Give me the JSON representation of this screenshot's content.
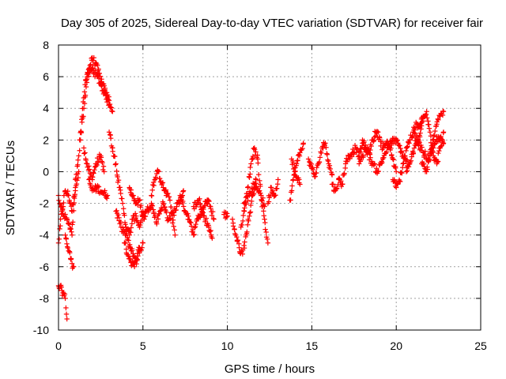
{
  "chart_data": {
    "type": "scatter",
    "title": "Day 305 of 2025, Sidereal Day-to-day VTEC variation (SDTVAR) for receiver fair",
    "xlabel": "GPS time / hours",
    "ylabel": "SDTVAR / TECUs",
    "xlim": [
      0,
      25
    ],
    "ylim": [
      -10,
      8
    ],
    "xticks": [
      0,
      5,
      10,
      15,
      20,
      25
    ],
    "yticks": [
      -10,
      -8,
      -6,
      -4,
      -2,
      0,
      2,
      4,
      6,
      8
    ],
    "xtick_labels": [
      "0",
      "5",
      "10",
      "15",
      "20",
      "25"
    ],
    "ytick_labels": [
      "-10",
      "-8",
      "-6",
      "-4",
      "-2",
      "0",
      "2",
      "4",
      "6",
      "8"
    ],
    "grid": true,
    "marker": "+",
    "color": "#ff0000",
    "series": [
      {
        "name": "SDTVAR",
        "segments": [
          {
            "x": [
              0.0,
              0.2,
              0.4,
              0.6,
              0.8,
              1.0,
              1.2
            ],
            "y": [
              -4.5,
              -2.5,
              -1.2,
              -1.5,
              -2.5,
              -1.0,
              0.0
            ]
          },
          {
            "x": [
              0.0,
              0.3,
              0.5,
              0.8,
              1.0
            ],
            "y": [
              -1.5,
              -2.8,
              -3.0,
              -4.0,
              -1.2
            ]
          },
          {
            "x": [
              0.0,
              0.2,
              0.4,
              0.5
            ],
            "y": [
              -7.2,
              -7.5,
              -8.0,
              -9.3
            ]
          },
          {
            "x": [
              0.4,
              0.6,
              0.8,
              0.9
            ],
            "y": [
              -4.0,
              -5.0,
              -5.8,
              -6.0
            ]
          },
          {
            "x": [
              1.0,
              1.2,
              1.4,
              1.6,
              1.8,
              2.0,
              2.2,
              2.4,
              2.6,
              2.8,
              3.0,
              3.2
            ],
            "y": [
              -0.5,
              1.0,
              3.5,
              5.8,
              6.5,
              7.2,
              6.8,
              6.2,
              5.5,
              5.0,
              4.5,
              3.8
            ]
          },
          {
            "x": [
              1.3,
              1.5,
              1.7,
              2.0,
              2.3,
              2.5,
              2.8,
              3.0
            ],
            "y": [
              2.0,
              4.0,
              6.0,
              6.5,
              6.0,
              5.5,
              4.8,
              4.2
            ]
          },
          {
            "x": [
              1.5,
              1.7,
              2.0,
              2.2,
              2.5,
              2.7
            ],
            "y": [
              1.5,
              0.5,
              -0.5,
              0.5,
              1.0,
              0.0
            ]
          },
          {
            "x": [
              1.8,
              2.0,
              2.3,
              2.6,
              2.9
            ],
            "y": [
              -0.5,
              -1.2,
              -1.0,
              -1.3,
              -1.5
            ]
          },
          {
            "x": [
              3.0,
              3.2,
              3.4,
              3.6,
              3.8,
              4.0,
              4.2,
              4.4,
              4.6,
              4.8,
              5.0
            ],
            "y": [
              2.5,
              1.5,
              0.5,
              -1.0,
              -2.0,
              -3.5,
              -4.0,
              -3.0,
              -2.8,
              -3.5,
              -2.5
            ]
          },
          {
            "x": [
              3.4,
              3.7,
              4.0,
              4.3,
              4.6,
              5.0
            ],
            "y": [
              -2.5,
              -3.5,
              -4.0,
              -5.0,
              -5.5,
              -4.5
            ]
          },
          {
            "x": [
              3.9,
              4.2,
              4.5,
              4.8
            ],
            "y": [
              -4.5,
              -5.5,
              -6.0,
              -4.8
            ]
          },
          {
            "x": [
              4.2,
              4.4,
              4.6,
              4.8,
              5.0,
              5.2
            ],
            "y": [
              -1.0,
              -1.5,
              -2.0,
              -1.8,
              -2.8,
              -2.5
            ]
          },
          {
            "x": [
              5.0,
              5.2,
              5.5,
              5.8,
              6.0,
              6.2,
              6.5,
              6.8,
              7.0,
              7.2,
              7.4
            ],
            "y": [
              -3.0,
              -2.5,
              -2.0,
              -3.2,
              -2.5,
              -2.0,
              -3.0,
              -2.6,
              -2.2,
              -1.8,
              -1.2
            ]
          },
          {
            "x": [
              5.5,
              5.7,
              5.9,
              6.2,
              6.6,
              6.9
            ],
            "y": [
              -1.5,
              -0.5,
              0.0,
              -1.0,
              -1.8,
              -4.0
            ]
          },
          {
            "x": [
              7.2,
              7.5,
              7.8,
              8.0,
              8.2,
              8.5,
              8.8,
              9.0,
              9.2
            ],
            "y": [
              -1.5,
              -2.5,
              -3.2,
              -4.0,
              -3.0,
              -2.5,
              -1.8,
              -2.2,
              -3.0
            ]
          },
          {
            "x": [
              8.0,
              8.3,
              8.6,
              8.9,
              9.1
            ],
            "y": [
              -2.2,
              -1.8,
              -2.8,
              -3.5,
              -4.2
            ]
          },
          {
            "x": [
              9.8,
              10.0
            ],
            "y": [
              -2.7,
              -2.8
            ]
          },
          {
            "x": [
              10.3,
              10.5,
              10.7,
              10.9,
              11.1,
              11.3,
              11.5,
              11.7
            ],
            "y": [
              -3.0,
              -4.0,
              -4.8,
              -5.2,
              -4.0,
              -2.8,
              -1.5,
              -0.5
            ]
          },
          {
            "x": [
              10.8,
              11.0,
              11.2,
              11.4,
              11.6,
              11.8,
              12.0,
              12.2,
              12.4
            ],
            "y": [
              -3.5,
              -2.5,
              -1.0,
              0.5,
              1.5,
              0.8,
              -1.5,
              -3.0,
              -4.5
            ]
          },
          {
            "x": [
              11.0,
              11.3,
              11.6,
              11.9,
              12.2
            ],
            "y": [
              -2.0,
              -1.5,
              -0.8,
              -1.2,
              -2.2
            ]
          },
          {
            "x": [
              12.4,
              12.6,
              12.8,
              13.0
            ],
            "y": [
              -2.0,
              -1.0,
              -1.5,
              -0.5
            ]
          },
          {
            "x": [
              13.7,
              13.9,
              14.1,
              14.3,
              14.5
            ],
            "y": [
              -1.8,
              -0.5,
              0.5,
              1.2,
              1.8
            ]
          },
          {
            "x": [
              13.8,
              14.0,
              14.3
            ],
            "y": [
              0.8,
              0.0,
              -0.8
            ]
          },
          {
            "x": [
              14.8,
              15.0,
              15.2,
              15.4,
              15.6,
              15.8,
              16.0,
              16.2
            ],
            "y": [
              0.8,
              0.2,
              -0.3,
              0.5,
              1.5,
              1.8,
              0.5,
              -0.2
            ]
          },
          {
            "x": [
              16.2,
              16.4,
              16.6,
              16.8,
              17.0,
              17.2,
              17.4,
              17.6,
              17.8,
              18.0
            ],
            "y": [
              -0.8,
              -1.2,
              -0.5,
              -0.8,
              0.5,
              1.0,
              1.2,
              1.5,
              1.0,
              1.8
            ]
          },
          {
            "x": [
              17.8,
              18.0,
              18.2,
              18.4,
              18.6,
              18.8,
              19.0,
              19.2,
              19.4,
              19.6,
              19.8,
              20.0
            ],
            "y": [
              0.5,
              1.0,
              1.5,
              1.2,
              2.0,
              2.5,
              2.2,
              1.5,
              1.8,
              1.6,
              0.8,
              0.0
            ]
          },
          {
            "x": [
              18.0,
              18.3,
              18.6,
              18.9,
              19.2,
              19.5,
              19.8,
              20.1,
              20.4,
              20.7
            ],
            "y": [
              2.0,
              1.2,
              0.5,
              0.0,
              0.8,
              1.5,
              2.0,
              1.8,
              1.0,
              0.5
            ]
          },
          {
            "x": [
              19.8,
              20.0,
              20.2,
              20.4,
              20.6,
              20.8,
              21.0,
              21.2,
              21.4,
              21.6
            ],
            "y": [
              -0.5,
              -1.0,
              -0.6,
              0.5,
              1.5,
              2.0,
              2.5,
              3.0,
              2.8,
              3.5
            ]
          },
          {
            "x": [
              20.6,
              20.8,
              21.0,
              21.2,
              21.4,
              21.6,
              21.8,
              22.0,
              22.2,
              22.4,
              22.6,
              22.8
            ],
            "y": [
              0.0,
              0.5,
              1.2,
              1.8,
              2.2,
              3.5,
              3.8,
              2.5,
              1.0,
              0.5,
              1.5,
              2.5
            ]
          },
          {
            "x": [
              21.5,
              21.8,
              22.0,
              22.2,
              22.4,
              22.6,
              22.8
            ],
            "y": [
              0.5,
              0.0,
              1.0,
              2.0,
              3.0,
              3.5,
              3.8
            ]
          },
          {
            "x": [
              21.0,
              21.3,
              21.6,
              21.9,
              22.2,
              22.5,
              22.8
            ],
            "y": [
              2.5,
              1.8,
              1.2,
              0.8,
              1.5,
              2.2,
              1.8
            ]
          }
        ]
      }
    ]
  }
}
